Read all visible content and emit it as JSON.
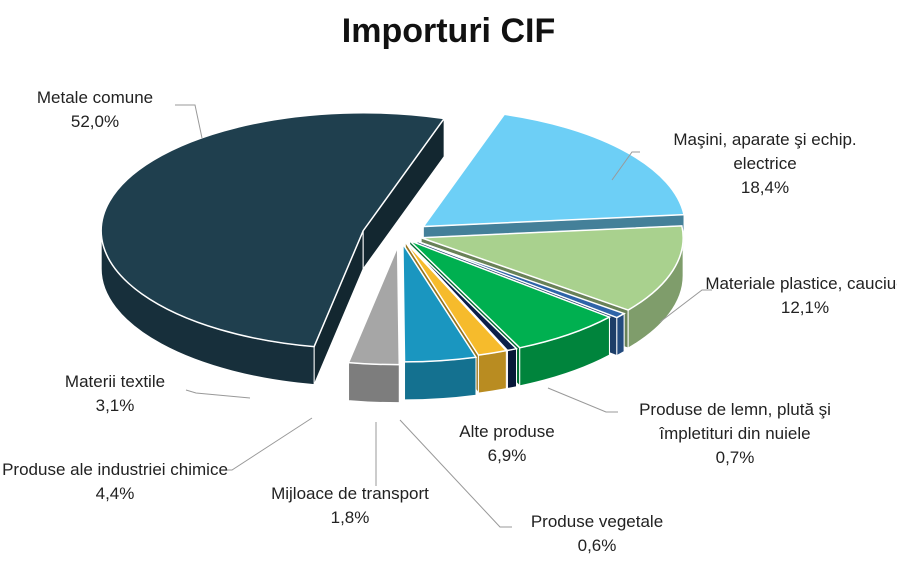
{
  "chart_data": {
    "type": "pie3d",
    "title": "Importuri CIF",
    "categories": [
      "Metale comune",
      "Maşini, aparate şi echip. electrice",
      "Materiale plastice, cauciuc",
      "Produse de lemn, plută şi împletituri din nuiele",
      "Alte produse",
      "Produse vegetale",
      "Mijloace de transport",
      "Produse ale industriei chimice",
      "Materii textile"
    ],
    "values": [
      52.0,
      18.4,
      12.1,
      0.7,
      6.9,
      0.6,
      1.8,
      4.4,
      3.1
    ],
    "value_labels": [
      "52,0%",
      "18,4%",
      "12,1%",
      "0,7%",
      "6,9%",
      "0,6%",
      "1,8%",
      "4,4%",
      "3,1%"
    ],
    "colors": [
      "#1f3f4e",
      "#6dcff6",
      "#a9d18e",
      "#2e64a8",
      "#00b050",
      "#0b1f4a",
      "#f6bb2c",
      "#1a96c0",
      "#a6a6a6"
    ]
  }
}
